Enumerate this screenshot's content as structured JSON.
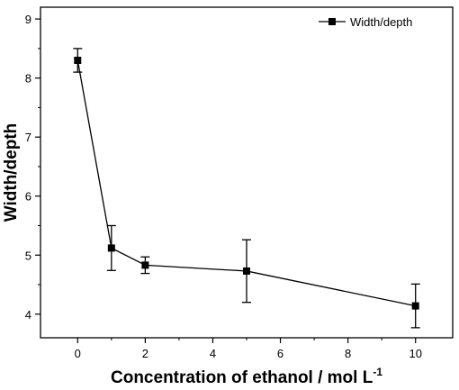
{
  "chart_data": {
    "type": "line",
    "title": "",
    "xlabel_main": "Concentration of ethanol / mol L",
    "xlabel_superscript": "-1",
    "ylabel": "Width/depth",
    "xlim": [
      -1.1,
      11.1
    ],
    "ylim": [
      3.6,
      9.2
    ],
    "xticks": [
      0,
      2,
      4,
      6,
      8,
      10
    ],
    "yticks": [
      4,
      5,
      6,
      7,
      8,
      9
    ],
    "grid": false,
    "legend_position": "top-right",
    "series": [
      {
        "name": "Width/depth",
        "marker": "square",
        "color": "#000000",
        "x": [
          0,
          1,
          2,
          5,
          10
        ],
        "y": [
          8.3,
          5.12,
          4.83,
          4.73,
          4.14
        ],
        "error": [
          0.2,
          0.38,
          0.14,
          0.53,
          0.37
        ]
      }
    ]
  }
}
